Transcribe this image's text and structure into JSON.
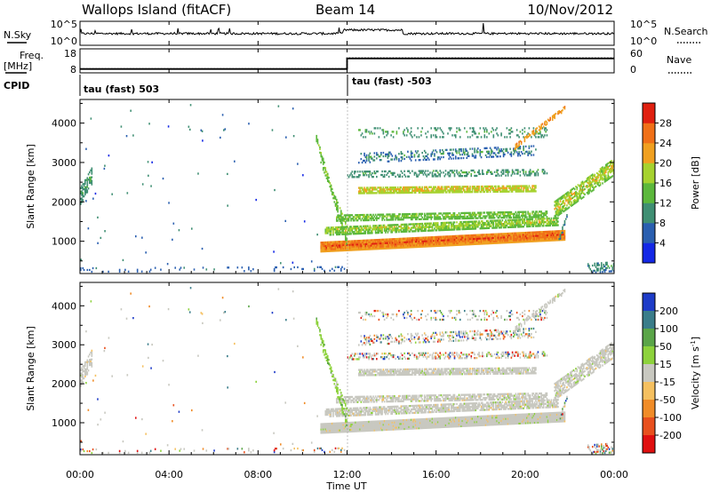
{
  "chart_data": {
    "type": "heatmap",
    "header": {
      "station": "Wallops Island (fitACF)",
      "beam": "Beam 14",
      "date": "10/Nov/2012"
    },
    "x_axis": {
      "label": "Time UT",
      "ticks": [
        "00:00",
        "04:00",
        "08:00",
        "12:00",
        "16:00",
        "20:00",
        "00:00"
      ],
      "range_hours": [
        0,
        24
      ]
    },
    "sky_panel": {
      "left_label": "N.Sky",
      "right_label": "N.Search",
      "left_ticks": [
        "10^5",
        "10^0"
      ],
      "right_ticks": [
        "10^5",
        "10^0"
      ]
    },
    "freq_panel": {
      "left_label": "Freq.",
      "left_unit": "[MHz]",
      "left_ticks": [
        18,
        8
      ],
      "right_label": "Nave",
      "right_ticks": [
        60,
        0
      ],
      "nave_step": [
        {
          "hours": [
            0,
            12
          ],
          "value": 13
        },
        {
          "hours": [
            12,
            24
          ],
          "value": 50
        }
      ]
    },
    "cpid": {
      "label": "CPID",
      "segments": [
        {
          "start_hours": 0,
          "text": "tau (fast) 503"
        },
        {
          "start_hours": 12,
          "text": "tau (fast) -503"
        }
      ]
    },
    "power_panel": {
      "ylabel": "Slant Range [km]",
      "yticks": [
        1000,
        2000,
        3000,
        4000
      ],
      "ylim": [
        180,
        4600
      ],
      "colorbar_label": "Power [dB]",
      "colorbar_ticks": [
        4,
        8,
        12,
        16,
        20,
        24,
        28
      ],
      "colorbar_range": [
        0,
        32
      ],
      "colors": [
        "#1428e6",
        "#2a5fb0",
        "#3f8f73",
        "#5cb83c",
        "#a6d22f",
        "#f0a020",
        "#f07018",
        "#e02010"
      ]
    },
    "velocity_panel": {
      "ylabel": "Slant Range [km]",
      "yticks": [
        1000,
        2000,
        3000,
        4000
      ],
      "ylim": [
        180,
        4600
      ],
      "colorbar_label": "Velocity [m s^-1]",
      "colorbar_ticks": [
        200,
        100,
        50,
        15,
        -15,
        -50,
        -100,
        -200
      ],
      "colors": [
        "#1e3cc8",
        "#3a7d8a",
        "#5aa548",
        "#8dd23c",
        "#c8c8c0",
        "#f5c060",
        "#f08c28",
        "#e8501e",
        "#e01010"
      ]
    },
    "echo_regions": [
      {
        "type": "band",
        "t0": 10.8,
        "t1": 21.8,
        "r0s": 850,
        "r0e": 1150,
        "w": 260,
        "dense": 1.0,
        "pmin": 18,
        "pmax": 31,
        "vel": "gray"
      },
      {
        "type": "band",
        "t0": 11.0,
        "t1": 21.5,
        "r0s": 1250,
        "r0e": 1500,
        "w": 220,
        "dense": 0.8,
        "pmin": 10,
        "pmax": 22,
        "vel": "gray"
      },
      {
        "type": "band",
        "t0": 11.5,
        "t1": 21.0,
        "r0s": 1600,
        "r0e": 1700,
        "w": 200,
        "dense": 0.7,
        "pmin": 8,
        "pmax": 20,
        "vel": "gray"
      },
      {
        "type": "band",
        "t0": 12.5,
        "t1": 20.5,
        "r0s": 2300,
        "r0e": 2350,
        "w": 200,
        "dense": 0.8,
        "pmin": 14,
        "pmax": 24,
        "vel": "gray"
      },
      {
        "type": "band",
        "t0": 12.0,
        "t1": 21.0,
        "r0s": 2700,
        "r0e": 2750,
        "w": 180,
        "dense": 0.35,
        "pmin": 4,
        "pmax": 16,
        "vel": "mixed"
      },
      {
        "type": "band",
        "t0": 12.5,
        "t1": 20.5,
        "r0s": 3100,
        "r0e": 3300,
        "w": 250,
        "dense": 0.3,
        "pmin": 2,
        "pmax": 14,
        "vel": "mixed"
      },
      {
        "type": "band",
        "t0": 12.5,
        "t1": 21.0,
        "r0s": 3750,
        "r0e": 3750,
        "w": 250,
        "dense": 0.18,
        "pmin": 4,
        "pmax": 16,
        "vel": "mixed"
      },
      {
        "type": "band",
        "t0": 21.3,
        "t1": 24.0,
        "r0s": 1800,
        "r0e": 2900,
        "w": 450,
        "dense": 0.65,
        "pmin": 10,
        "pmax": 24,
        "vel": "gray"
      },
      {
        "type": "band",
        "t0": 0.0,
        "t1": 0.55,
        "r0s": 2150,
        "r0e": 2700,
        "w": 450,
        "dense": 0.6,
        "pmin": 4,
        "pmax": 16,
        "vel": "gray"
      },
      {
        "type": "band",
        "t0": 0.0,
        "t1": 12.0,
        "r0s": 270,
        "r0e": 300,
        "w": 130,
        "dense": 0.1,
        "pmin": 2,
        "pmax": 10,
        "vel": "mixed"
      },
      {
        "type": "diag",
        "t0": 10.6,
        "t1": 12.0,
        "r0s": 3600,
        "r0e": 900,
        "w": 160,
        "dense": 0.75,
        "pmin": 8,
        "pmax": 20,
        "vel": "green"
      },
      {
        "type": "diag",
        "t0": 10.8,
        "t1": 12.0,
        "r0s": 3000,
        "r0e": 1300,
        "w": 130,
        "dense": 0.55,
        "pmin": 8,
        "pmax": 20,
        "vel": "green"
      },
      {
        "type": "diag",
        "t0": 19.5,
        "t1": 21.8,
        "r0s": 3400,
        "r0e": 4400,
        "w": 150,
        "dense": 0.5,
        "pmin": 16,
        "pmax": 28,
        "vel": "gray"
      },
      {
        "type": "diag",
        "t0": 21.5,
        "t1": 21.9,
        "r0s": 1000,
        "r0e": 1800,
        "w": 200,
        "dense": 0.4,
        "pmin": 4,
        "pmax": 14,
        "vel": "mixed"
      },
      {
        "type": "band",
        "t0": 22.8,
        "t1": 24.0,
        "r0s": 300,
        "r0e": 350,
        "w": 250,
        "dense": 0.35,
        "pmin": 4,
        "pmax": 14,
        "vel": "mixed"
      },
      {
        "type": "sparse",
        "t0": 0.0,
        "t1": 11.0,
        "rmin": 400,
        "rmax": 4500,
        "count": 70,
        "pmin": 2,
        "pmax": 12,
        "vel": "mixed"
      }
    ]
  }
}
